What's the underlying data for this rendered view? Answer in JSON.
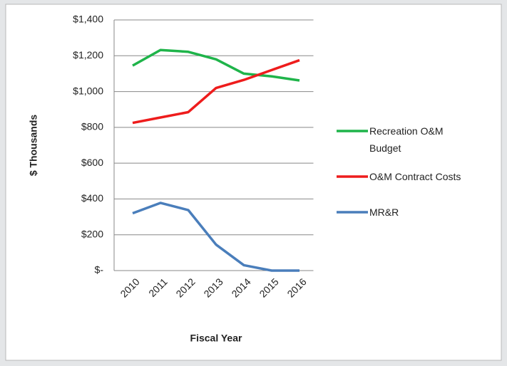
{
  "chart_data": {
    "type": "line",
    "xlabel": "Fiscal Year",
    "ylabel": "$ Thousands",
    "categories": [
      "2010",
      "2011",
      "2012",
      "2013",
      "2014",
      "2015",
      "2016"
    ],
    "series": [
      {
        "name": "Recreation O&M Budget",
        "color": "#1fb44a",
        "values": [
          1145,
          1232,
          1222,
          1180,
          1100,
          1085,
          1062
        ]
      },
      {
        "name": "O&M Contract Costs",
        "color": "#ee1c1c",
        "values": [
          825,
          855,
          885,
          1020,
          1065,
          1120,
          1175
        ]
      },
      {
        "name": "MR&R",
        "color": "#4a7ebb",
        "values": [
          320,
          378,
          338,
          145,
          30,
          0,
          0
        ]
      }
    ],
    "ylim": [
      0,
      1400
    ],
    "yticks": [
      {
        "value": 0,
        "label": "$-"
      },
      {
        "value": 200,
        "label": "$200"
      },
      {
        "value": 400,
        "label": "$400"
      },
      {
        "value": 600,
        "label": "$600"
      },
      {
        "value": 800,
        "label": "$800"
      },
      {
        "value": 1000,
        "label": "$1,000"
      },
      {
        "value": 1200,
        "label": "$1,200"
      },
      {
        "value": 1400,
        "label": "$1,400"
      }
    ],
    "grid": true,
    "legend": "right"
  }
}
